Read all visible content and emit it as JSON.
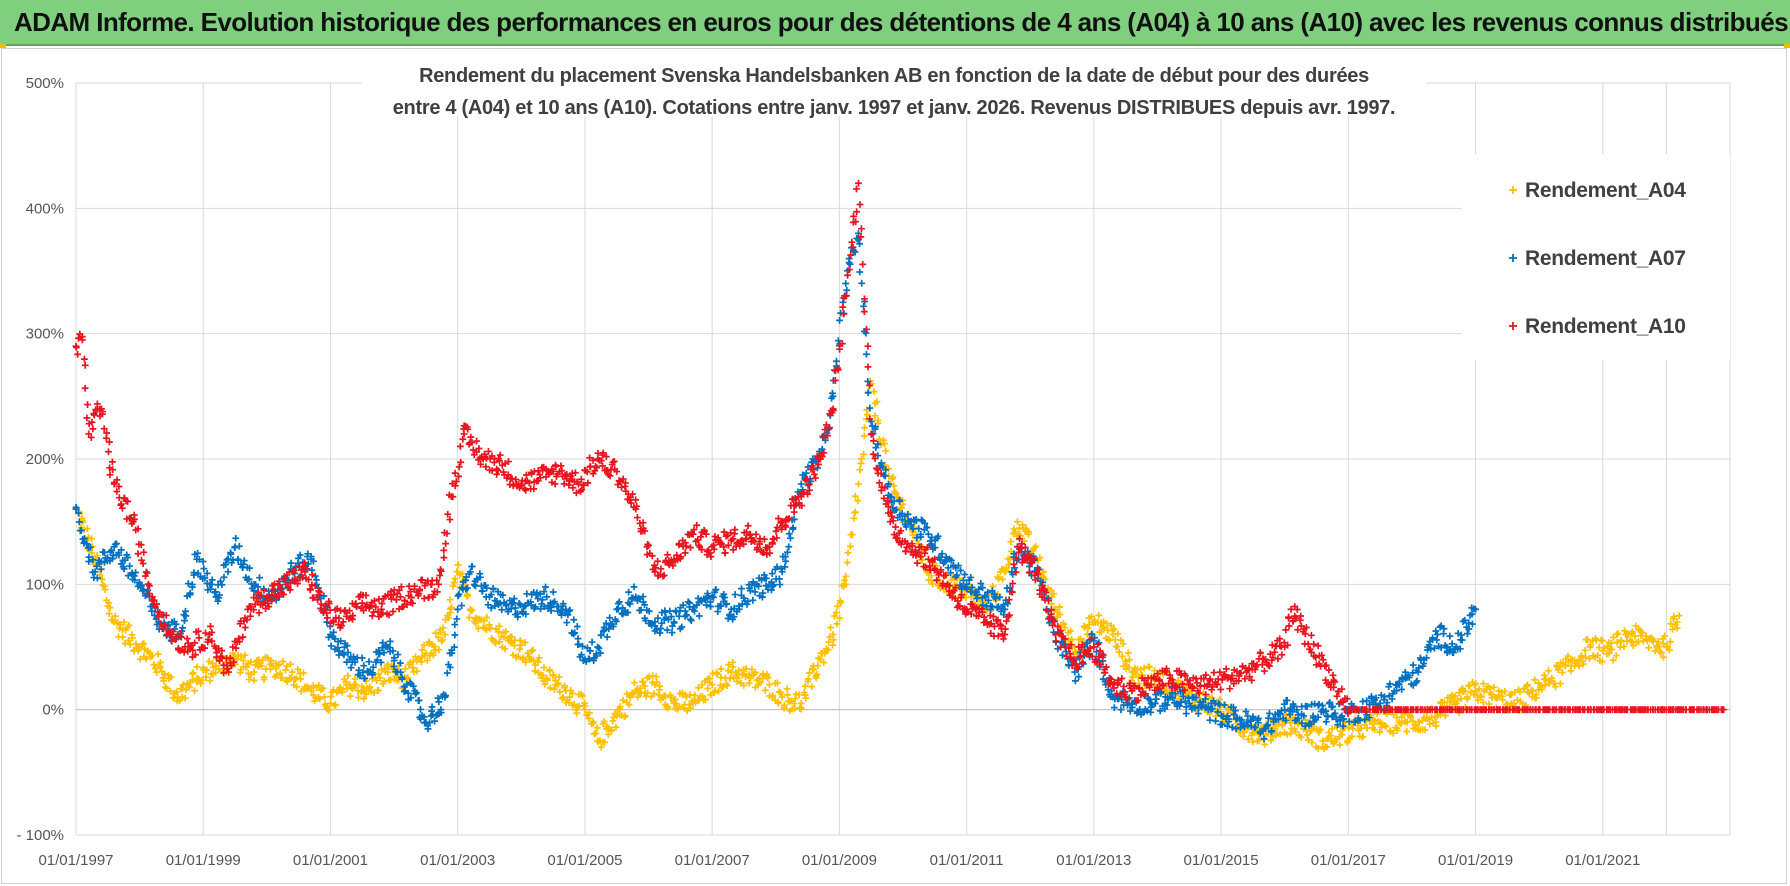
{
  "header": {
    "title": "ADAM Informe. Evolution historique des performances en euros pour des détentions de 4 ans (A04) à 10 ans (A10) avec les revenus connus distribués"
  },
  "chart_data": {
    "type": "scatter",
    "title_lines": [
      "Rendement du placement Svenska Handelsbanken AB en fonction de la date de début pour des durées",
      "entre 4 (A04) et 10 ans (A10).  Cotations entre janv. 1997 et janv. 2026. Revenus DISTRIBUES depuis avr. 1997."
    ],
    "x_range": [
      1997.0,
      2023.0
    ],
    "y_range": [
      -100,
      500
    ],
    "y_ticks": [
      {
        "value": 500,
        "label": "500%"
      },
      {
        "value": 400,
        "label": "400%"
      },
      {
        "value": 300,
        "label": "300%"
      },
      {
        "value": 200,
        "label": "200%"
      },
      {
        "value": 100,
        "label": "100%"
      },
      {
        "value": 0,
        "label": "0%"
      },
      {
        "value": -100,
        "label": "- 100%"
      }
    ],
    "x_ticks": [
      {
        "value": 1997,
        "label": "01/01/1997"
      },
      {
        "value": 1999,
        "label": "01/01/1999"
      },
      {
        "value": 2001,
        "label": "01/01/2001"
      },
      {
        "value": 2003,
        "label": "01/01/2003"
      },
      {
        "value": 2005,
        "label": "01/01/2005"
      },
      {
        "value": 2007,
        "label": "01/01/2007"
      },
      {
        "value": 2009,
        "label": "01/01/2009"
      },
      {
        "value": 2011,
        "label": "01/01/2011"
      },
      {
        "value": 2013,
        "label": "01/01/2013"
      },
      {
        "value": 2015,
        "label": "01/01/2015"
      },
      {
        "value": 2017,
        "label": "01/01/2017"
      },
      {
        "value": 2019,
        "label": "01/01/2019"
      },
      {
        "value": 2021,
        "label": "01/01/2021"
      }
    ],
    "extra_gridlines_x": [
      2022.0
    ],
    "legend_position": "top-right",
    "series": [
      {
        "name": "Rendement_A04",
        "color": "#FFC000",
        "x": [
          1997.0,
          1997.3,
          1997.6,
          1998.0,
          1998.3,
          1998.6,
          1998.9,
          1999.2,
          1999.5,
          1999.8,
          2000.1,
          2000.4,
          2000.7,
          2001.0,
          2001.3,
          2001.6,
          2001.9,
          2002.2,
          2002.5,
          2002.8,
          2003.0,
          2003.2,
          2003.5,
          2003.8,
          2004.1,
          2004.4,
          2004.7,
          2005.0,
          2005.2,
          2005.5,
          2005.8,
          2006.1,
          2006.4,
          2006.7,
          2007.0,
          2007.3,
          2007.6,
          2007.9,
          2008.1,
          2008.4,
          2008.7,
          2008.9,
          2009.1,
          2009.3,
          2009.5,
          2009.8,
          2010.1,
          2010.4,
          2010.7,
          2011.0,
          2011.3,
          2011.6,
          2011.8,
          2012.1,
          2012.4,
          2012.7,
          2013.0,
          2013.3,
          2013.6,
          2013.9,
          2014.2,
          2014.5,
          2014.8,
          2015.1,
          2015.4,
          2015.7,
          2016.0,
          2016.3,
          2016.6,
          2016.9,
          2017.2,
          2017.5,
          2017.8,
          2018.1,
          2018.4,
          2018.7,
          2019.0,
          2019.3,
          2019.6,
          2019.9,
          2020.2,
          2020.5,
          2020.8,
          2021.1,
          2021.4,
          2021.7,
          2022.0,
          2022.2
        ],
        "y": [
          160,
          120,
          70,
          50,
          35,
          10,
          25,
          35,
          40,
          30,
          35,
          30,
          15,
          5,
          20,
          15,
          30,
          25,
          45,
          60,
          110,
          80,
          65,
          55,
          45,
          25,
          15,
          0,
          -25,
          -5,
          15,
          20,
          5,
          5,
          20,
          30,
          25,
          20,
          10,
          5,
          40,
          60,
          100,
          180,
          260,
          180,
          150,
          110,
          100,
          95,
          80,
          110,
          150,
          120,
          80,
          50,
          70,
          60,
          30,
          25,
          20,
          10,
          5,
          -5,
          -15,
          -20,
          -10,
          -15,
          -25,
          -20,
          -15,
          -10,
          -10,
          -10,
          -5,
          5,
          15,
          10,
          5,
          15,
          25,
          35,
          50,
          45,
          60,
          55,
          50,
          75
        ]
      },
      {
        "name": "Rendement_A07",
        "color": "#0070C0",
        "x": [
          1997.0,
          1997.3,
          1997.6,
          1998.0,
          1998.3,
          1998.6,
          1998.9,
          1999.2,
          1999.5,
          1999.8,
          2000.1,
          2000.4,
          2000.7,
          2001.0,
          2001.3,
          2001.6,
          2001.9,
          2002.2,
          2002.5,
          2002.8,
          2003.0,
          2003.2,
          2003.5,
          2003.8,
          2004.1,
          2004.4,
          2004.7,
          2005.0,
          2005.2,
          2005.5,
          2005.8,
          2006.1,
          2006.4,
          2006.7,
          2007.0,
          2007.3,
          2007.6,
          2007.9,
          2008.1,
          2008.4,
          2008.7,
          2008.9,
          2009.1,
          2009.3,
          2009.5,
          2009.8,
          2010.1,
          2010.4,
          2010.7,
          2011.0,
          2011.3,
          2011.6,
          2011.8,
          2012.1,
          2012.4,
          2012.7,
          2013.0,
          2013.3,
          2013.6,
          2013.9,
          2014.2,
          2014.5,
          2014.8,
          2015.1,
          2015.4,
          2015.7,
          2016.0,
          2016.3,
          2016.6,
          2016.9,
          2017.2,
          2017.5,
          2017.8,
          2018.1,
          2018.4,
          2018.7,
          2019.0
        ],
        "y": [
          160,
          110,
          130,
          100,
          70,
          60,
          120,
          90,
          130,
          100,
          90,
          110,
          120,
          60,
          40,
          30,
          50,
          20,
          -10,
          10,
          80,
          110,
          90,
          80,
          85,
          90,
          80,
          40,
          50,
          80,
          90,
          70,
          70,
          80,
          90,
          80,
          95,
          100,
          110,
          180,
          200,
          250,
          340,
          380,
          230,
          170,
          150,
          140,
          120,
          100,
          90,
          80,
          130,
          110,
          60,
          30,
          55,
          10,
          5,
          5,
          10,
          5,
          0,
          -5,
          -10,
          -15,
          0,
          -5,
          0,
          -5,
          0,
          5,
          20,
          30,
          60,
          50,
          80
        ]
      },
      {
        "name": "Rendement_A10",
        "color": "#E8141F",
        "x": [
          1997.0,
          1997.1,
          1997.2,
          1997.4,
          1997.6,
          1997.9,
          1998.2,
          1998.5,
          1998.8,
          1999.1,
          1999.4,
          1999.7,
          2000.0,
          2000.3,
          2000.6,
          2000.9,
          2001.2,
          2001.5,
          2001.8,
          2002.1,
          2002.4,
          2002.7,
          2002.9,
          2003.1,
          2003.4,
          2003.7,
          2004.0,
          2004.3,
          2004.6,
          2004.9,
          2005.2,
          2005.5,
          2005.8,
          2006.1,
          2006.4,
          2006.7,
          2007.0,
          2007.3,
          2007.6,
          2007.9,
          2008.1,
          2008.4,
          2008.7,
          2008.9,
          2009.1,
          2009.3,
          2009.5,
          2009.8,
          2010.1,
          2010.4,
          2010.7,
          2011.0,
          2011.3,
          2011.6,
          2011.8,
          2012.1,
          2012.4,
          2012.7,
          2013.0,
          2013.3,
          2013.6,
          2013.9,
          2014.2,
          2014.5,
          2014.8,
          2015.1,
          2015.4,
          2015.7,
          2016.0,
          2016.1,
          2017.0,
          2018.0,
          2019.0,
          2020.0,
          2021.0,
          2022.0,
          2022.9
        ],
        "y": [
          290,
          295,
          220,
          240,
          180,
          150,
          90,
          60,
          50,
          60,
          30,
          80,
          90,
          100,
          110,
          80,
          70,
          85,
          80,
          90,
          95,
          100,
          170,
          220,
          200,
          195,
          180,
          185,
          190,
          180,
          200,
          190,
          160,
          110,
          120,
          140,
          130,
          135,
          140,
          130,
          150,
          170,
          200,
          240,
          330,
          420,
          220,
          150,
          130,
          120,
          100,
          80,
          70,
          60,
          130,
          110,
          60,
          40,
          50,
          20,
          15,
          20,
          25,
          20,
          20,
          25,
          30,
          40,
          50,
          80,
          0,
          0,
          0,
          0,
          0,
          0,
          0
        ]
      }
    ]
  }
}
